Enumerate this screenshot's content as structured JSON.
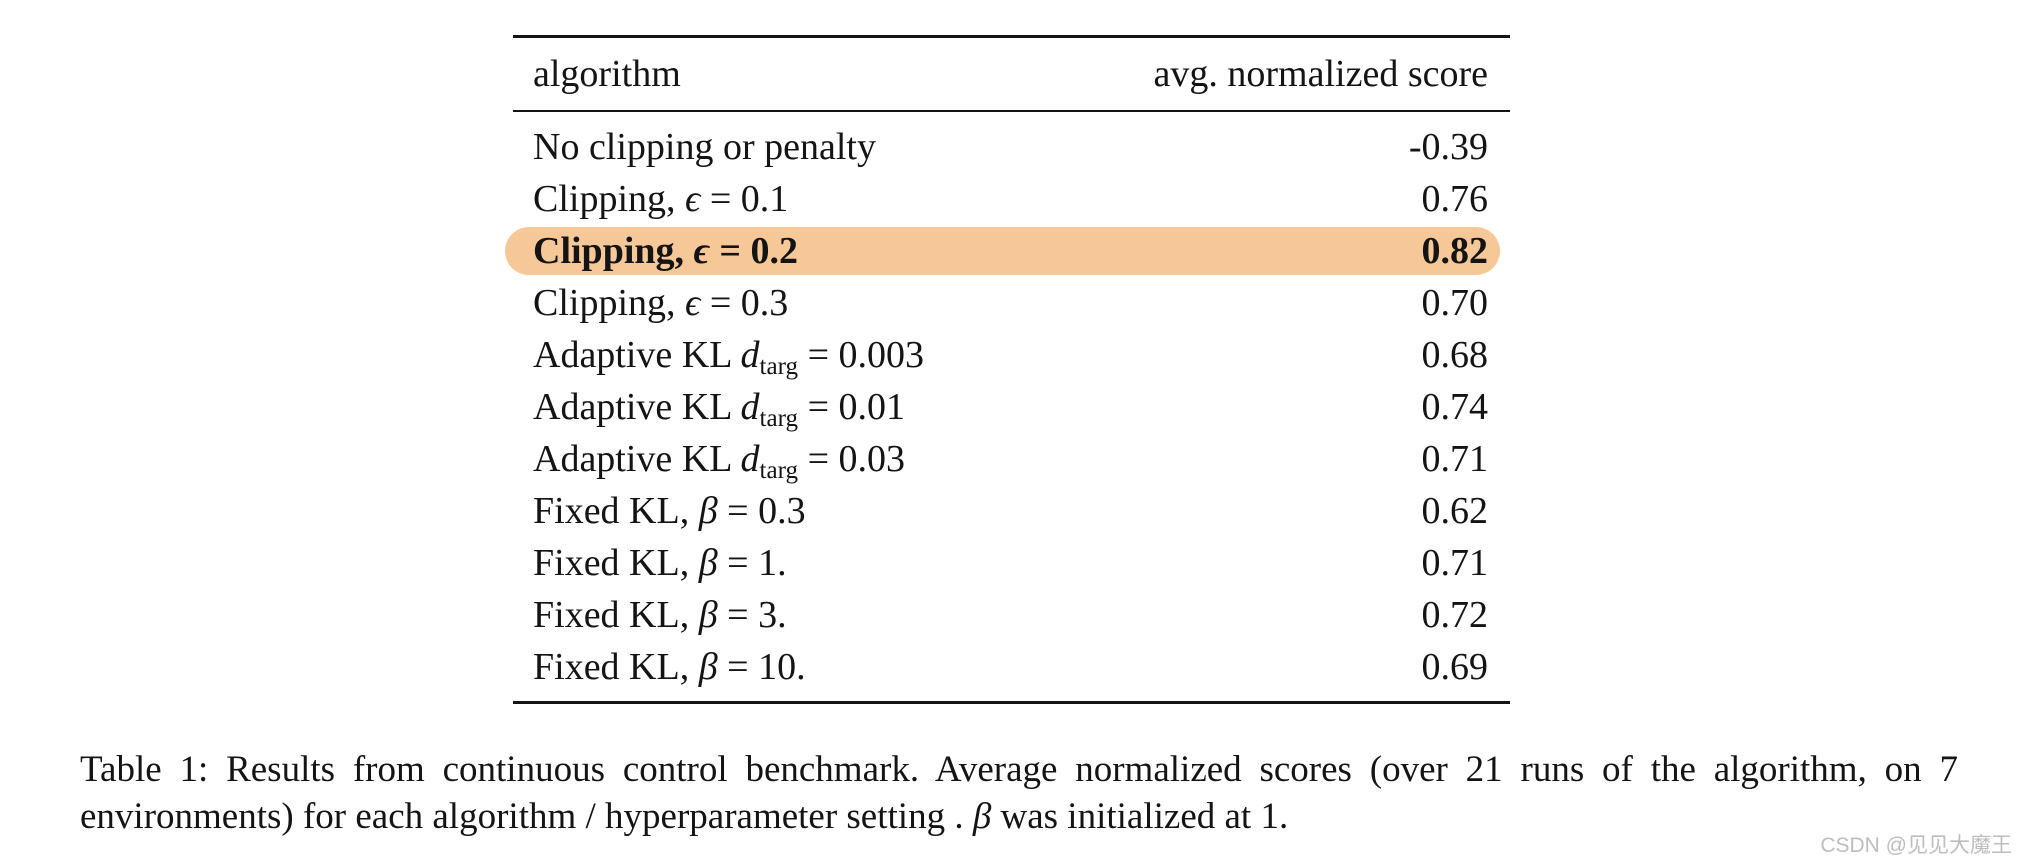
{
  "colors": {
    "highlight": "#f6c897",
    "ink": "#141414",
    "watermark_gray": "#bdbdbd"
  },
  "table": {
    "headers": {
      "algorithm": "algorithm",
      "score": "avg. normalized score"
    },
    "rows": [
      {
        "label": "No clipping or penalty",
        "var": "",
        "sub": "",
        "rest": "",
        "score": "-0.39",
        "highlighted": false
      },
      {
        "label": "Clipping, ",
        "var": "ϵ",
        "sub": "",
        "rest": " = 0.1",
        "score": "0.76",
        "highlighted": false
      },
      {
        "label": "Clipping, ",
        "var": "ϵ",
        "sub": "",
        "rest": " = 0.2",
        "score": "0.82",
        "highlighted": true
      },
      {
        "label": "Clipping, ",
        "var": "ϵ",
        "sub": "",
        "rest": " = 0.3",
        "score": "0.70",
        "highlighted": false
      },
      {
        "label": "Adaptive KL ",
        "var": "d",
        "sub": "targ",
        "rest": " = 0.003",
        "score": "0.68",
        "highlighted": false
      },
      {
        "label": "Adaptive KL ",
        "var": "d",
        "sub": "targ",
        "rest": " = 0.01",
        "score": "0.74",
        "highlighted": false
      },
      {
        "label": "Adaptive KL ",
        "var": "d",
        "sub": "targ",
        "rest": " = 0.03",
        "score": "0.71",
        "highlighted": false
      },
      {
        "label": "Fixed KL, ",
        "var": "β",
        "sub": "",
        "rest": " = 0.3",
        "score": "0.62",
        "highlighted": false
      },
      {
        "label": "Fixed KL, ",
        "var": "β",
        "sub": "",
        "rest": " = 1.",
        "score": "0.71",
        "highlighted": false
      },
      {
        "label": "Fixed KL, ",
        "var": "β",
        "sub": "",
        "rest": " = 3.",
        "score": "0.72",
        "highlighted": false
      },
      {
        "label": "Fixed KL, ",
        "var": "β",
        "sub": "",
        "rest": " = 10.",
        "score": "0.69",
        "highlighted": false
      }
    ]
  },
  "caption": {
    "text_before": "Table 1:  Results from continuous control benchmark.  Average normalized scores (over 21 runs of the algorithm, on 7 environments) for each algorithm / hyperparameter setting . ",
    "var": "β",
    "text_after": " was initialized at 1."
  },
  "watermark": "CSDN @见见大魔王",
  "chart_data": {
    "type": "table",
    "title": "Table 1: Results from continuous control benchmark",
    "columns": [
      "algorithm",
      "avg. normalized score"
    ],
    "rows": [
      [
        "No clipping or penalty",
        -0.39
      ],
      [
        "Clipping, ϵ = 0.1",
        0.76
      ],
      [
        "Clipping, ϵ = 0.2",
        0.82
      ],
      [
        "Clipping, ϵ = 0.3",
        0.7
      ],
      [
        "Adaptive KL d_targ = 0.003",
        0.68
      ],
      [
        "Adaptive KL d_targ = 0.01",
        0.74
      ],
      [
        "Adaptive KL d_targ = 0.03",
        0.71
      ],
      [
        "Fixed KL, β = 0.3",
        0.62
      ],
      [
        "Fixed KL, β = 1.",
        0.71
      ],
      [
        "Fixed KL, β = 3.",
        0.72
      ],
      [
        "Fixed KL, β = 10.",
        0.69
      ]
    ],
    "highlighted_row": "Clipping, ϵ = 0.2"
  }
}
